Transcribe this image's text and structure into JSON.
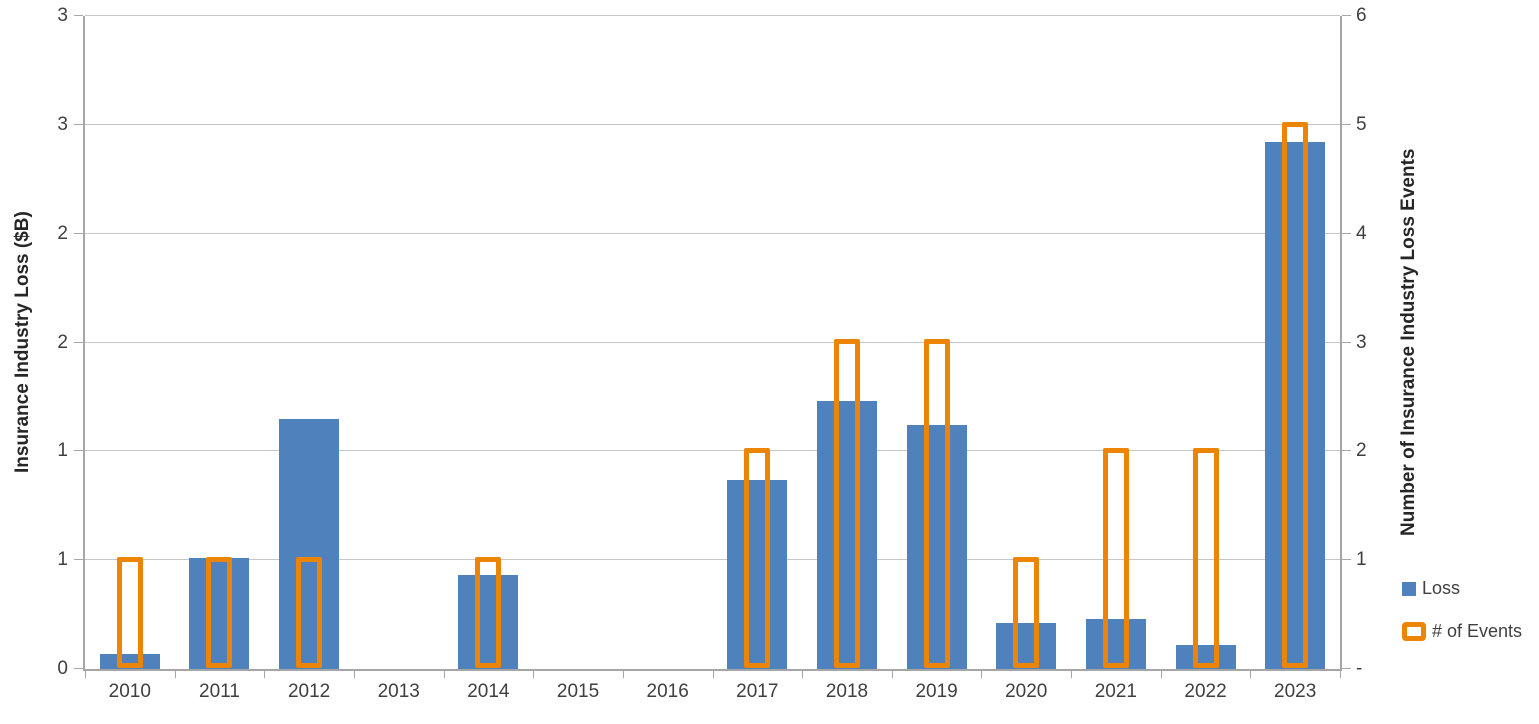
{
  "chart_data": {
    "type": "bar",
    "title": "",
    "categories": [
      "2010",
      "2011",
      "2012",
      "2013",
      "2014",
      "2015",
      "2016",
      "2017",
      "2018",
      "2019",
      "2020",
      "2021",
      "2022",
      "2023"
    ],
    "series": [
      {
        "name": "Loss",
        "axis": "left",
        "style": "filled",
        "color": "#4F81BD",
        "values": [
          0.07,
          0.51,
          1.15,
          0,
          0.43,
          0,
          0,
          0.87,
          1.23,
          1.12,
          0.21,
          0.23,
          0.11,
          2.42
        ]
      },
      {
        "name": "# of Events",
        "axis": "right",
        "style": "outline",
        "color": "#EC8406",
        "values": [
          1,
          1,
          1,
          0,
          1,
          0,
          0,
          2,
          3,
          3,
          1,
          2,
          2,
          5
        ]
      }
    ],
    "left_axis": {
      "title": "Insurance Industry Loss ($B)",
      "min": 0,
      "max": 3,
      "step": 0.5,
      "tick_labels_bottom_to_top": [
        "0",
        "1",
        "1",
        "2",
        "2",
        "3",
        "3"
      ]
    },
    "right_axis": {
      "title": "Number of Insurance Industry Loss Events",
      "min": 0,
      "max": 6,
      "step": 1,
      "tick_labels_bottom_to_top": [
        "-",
        "1",
        "2",
        "3",
        "4",
        "5",
        "6"
      ]
    },
    "legend": {
      "position": "right",
      "items": [
        {
          "label": "Loss",
          "marker": "filled-square",
          "color": "#4F81BD"
        },
        {
          "label": "# of Events",
          "marker": "outlined-square",
          "color": "#EC8406"
        }
      ]
    },
    "grid": true,
    "colors": {
      "loss_bar": "#4F81BD",
      "events_outline": "#EC8406",
      "gridline": "#C6C6C6",
      "axis_line": "#A6A6A6",
      "tick_text": "#3F3F3F",
      "title_text": "#262626",
      "background": "#FFFFFF"
    }
  }
}
